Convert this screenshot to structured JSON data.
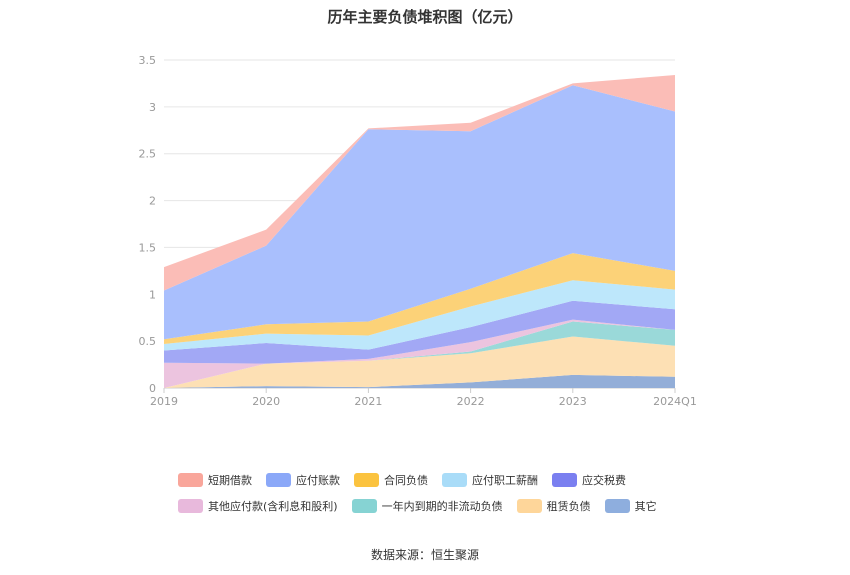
{
  "chart_data": {
    "type": "area",
    "title": "历年主要负债堆积图（亿元）",
    "categories": [
      "2019",
      "2020",
      "2021",
      "2022",
      "2023",
      "2024Q1"
    ],
    "ylim": [
      0,
      3.5
    ],
    "yticks": [
      "0",
      "0.5",
      "1",
      "1.5",
      "2",
      "2.5",
      "3",
      "3.5"
    ],
    "grid": true,
    "stacked": true,
    "legend_position": "bottom",
    "series": [
      {
        "name": "其它",
        "color": "#93aed8",
        "values": [
          0.0,
          0.02,
          0.01,
          0.06,
          0.14,
          0.12
        ]
      },
      {
        "name": "租赁负债",
        "color": "#fde0b4",
        "values": [
          0.0,
          0.24,
          0.28,
          0.31,
          0.41,
          0.33
        ]
      },
      {
        "name": "一年内到期的非流动负债",
        "color": "#9ad9d9",
        "values": [
          0.0,
          0.0,
          0.0,
          0.02,
          0.16,
          0.17
        ]
      },
      {
        "name": "其他应付款(含利息和股利)",
        "color": "#ecc4df",
        "values": [
          0.27,
          0.0,
          0.02,
          0.1,
          0.02,
          0.0
        ]
      },
      {
        "name": "应交税费",
        "color": "#a2a8f5",
        "values": [
          0.13,
          0.22,
          0.1,
          0.16,
          0.2,
          0.22
        ]
      },
      {
        "name": "应付职工薪酬",
        "color": "#bde7fb",
        "values": [
          0.07,
          0.1,
          0.15,
          0.22,
          0.22,
          0.21
        ]
      },
      {
        "name": "合同负债",
        "color": "#fcd278",
        "values": [
          0.05,
          0.1,
          0.15,
          0.19,
          0.29,
          0.2
        ]
      },
      {
        "name": "应付账款",
        "color": "#a9bffd",
        "values": [
          0.52,
          0.84,
          2.05,
          1.68,
          1.79,
          1.7
        ]
      },
      {
        "name": "短期借款",
        "color": "#fbbdb7",
        "values": [
          0.25,
          0.17,
          0.01,
          0.09,
          0.02,
          0.39
        ]
      }
    ]
  },
  "legend": [
    {
      "label": "短期借款",
      "color": "#f9a69b"
    },
    {
      "label": "应付账款",
      "color": "#8ba8f8"
    },
    {
      "label": "合同负债",
      "color": "#fbc33f"
    },
    {
      "label": "应付职工薪酬",
      "color": "#a9dcf8"
    },
    {
      "label": "应交税费",
      "color": "#7a7ff0"
    },
    {
      "label": "其他应付款(含利息和股利)",
      "color": "#e8b9dc"
    },
    {
      "label": "一年内到期的非流动负债",
      "color": "#86d3d3"
    },
    {
      "label": "租赁负债",
      "color": "#fed69a"
    },
    {
      "label": "其它",
      "color": "#8eaede"
    }
  ],
  "source": "数据来源：恒生聚源"
}
